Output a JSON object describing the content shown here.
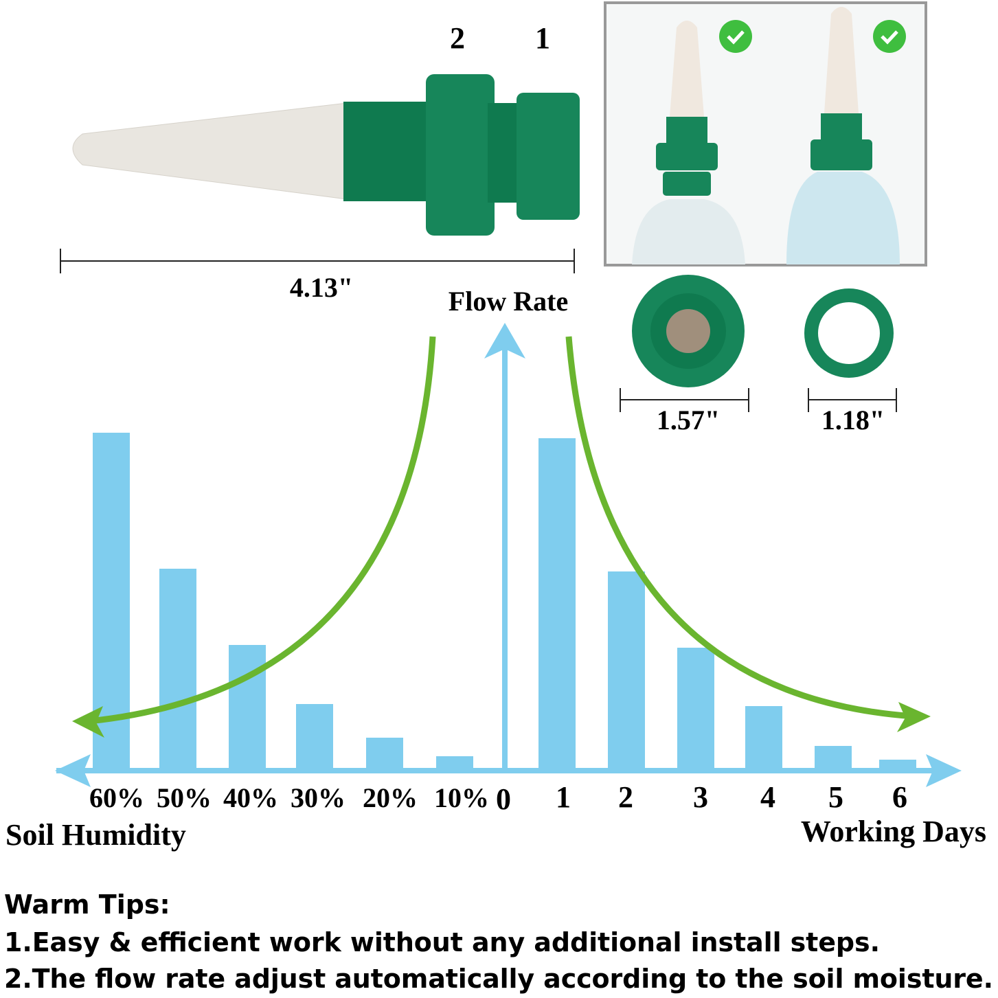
{
  "product": {
    "thread_labels": [
      "2",
      "1"
    ],
    "length": "4.13\"",
    "diameters": [
      "1.57\"",
      "1.18\""
    ]
  },
  "chart_data": {
    "type": "bar",
    "title": "Flow Rate",
    "color": "#7fcdee",
    "origin": 0,
    "left": {
      "axis_label": "Soil Humidity",
      "categories": [
        "60%",
        "50%",
        "40%",
        "30%",
        "20%",
        "10%"
      ],
      "values": [
        490,
        292,
        181,
        95,
        46,
        19
      ]
    },
    "right": {
      "axis_label": "Working Days",
      "categories": [
        "1",
        "2",
        "3",
        "4",
        "5",
        "6"
      ],
      "values": [
        482,
        288,
        177,
        92,
        34,
        14
      ]
    }
  },
  "tips": {
    "title": "Warm Tips:",
    "items": [
      "1.Easy & efficient work without any additional install steps.",
      "2.The flow rate adjust automatically according to the soil moisture."
    ]
  }
}
